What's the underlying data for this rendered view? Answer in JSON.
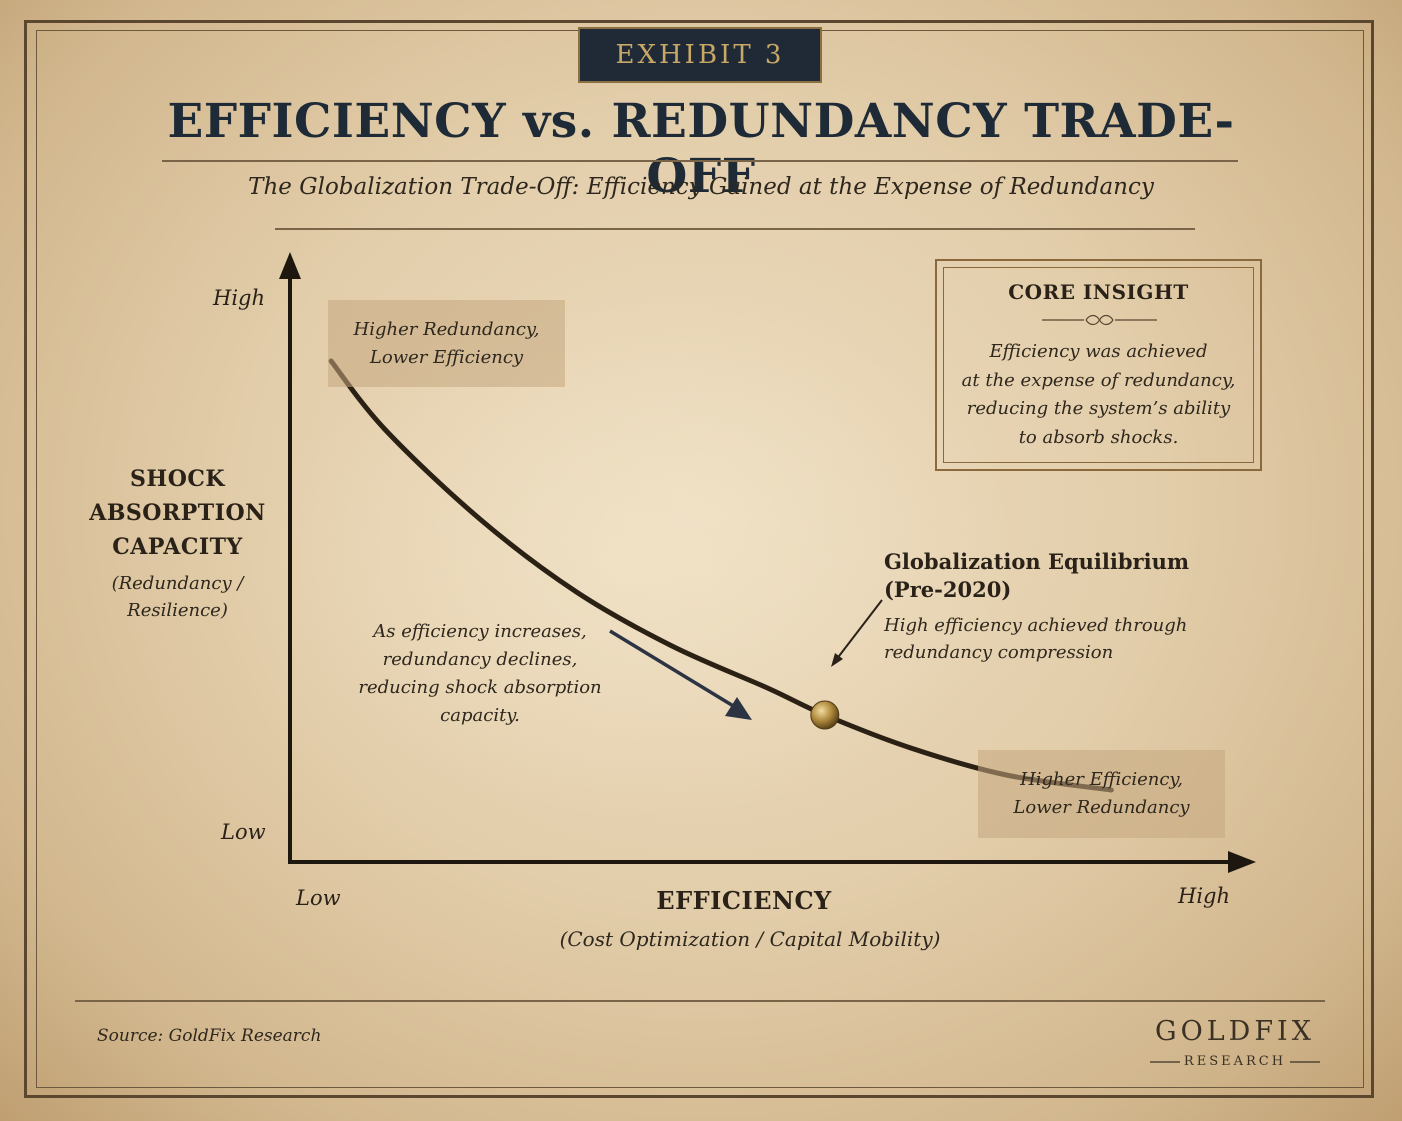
{
  "header": {
    "exhibit": "EXHIBIT 3",
    "title": "EFFICIENCY vs. REDUNDANCY TRADE-OFF",
    "subtitle": "The Globalization Trade-Off: Efficiency Gained at the Expense of Redundancy"
  },
  "chart_data": {
    "type": "line",
    "title": "EFFICIENCY vs. REDUNDANCY TRADE-OFF",
    "subtitle": "The Globalization Trade-Off: Efficiency Gained at the Expense of Redundancy",
    "xlabel": "EFFICIENCY",
    "xlabel_sub": "(Cost Optimization / Capital Mobility)",
    "ylabel_lines": [
      "SHOCK",
      "ABSORPTION",
      "CAPACITY"
    ],
    "ylabel_sub_lines": [
      "(Redundancy /",
      "Resilience)"
    ],
    "x_ticks": {
      "low": "Low",
      "high": "High"
    },
    "y_ticks": {
      "low": "Low",
      "high": "High"
    },
    "xlim": [
      0,
      1
    ],
    "ylim": [
      0,
      1
    ],
    "grid": false,
    "series": [
      {
        "x": [
          0.043,
          0.1,
          0.2,
          0.3,
          0.4,
          0.5,
          0.56,
          0.65,
          0.75,
          0.86
        ],
        "y": [
          0.835,
          0.72,
          0.57,
          0.45,
          0.36,
          0.29,
          0.245,
          0.19,
          0.145,
          0.12
        ],
        "color": "#2a2014"
      }
    ],
    "highlight_point": {
      "x": 0.56,
      "y": 0.245,
      "color": "#b08a3e"
    },
    "annotations": {
      "top_left_box": [
        "Higher Redundancy,",
        "Lower Efficiency"
      ],
      "bottom_right_box": [
        "Higher Efficiency,",
        "Lower Redundancy"
      ],
      "equilibrium_title_lines": [
        "Globalization Equilibrium",
        "(Pre-2020)"
      ],
      "equilibrium_desc_lines": [
        "High efficiency achieved through",
        "redundancy compression"
      ],
      "trend_note_lines": [
        "As efficiency increases,",
        "redundancy declines,",
        "reducing shock absorption",
        "capacity."
      ]
    }
  },
  "insight": {
    "title": "CORE INSIGHT",
    "lines": [
      "Efficiency was achieved",
      "at the expense of redundancy,",
      "reducing the system’s ability",
      "to absorb shocks."
    ]
  },
  "footer": {
    "source": "Source: GoldFix Research",
    "logo_name": "GOLDFIX",
    "logo_sub": "RESEARCH"
  },
  "colors": {
    "paper": "#e3ceab",
    "ink": "#2a2218",
    "navy": "#1f2a36",
    "gold": "#c8a866",
    "bronze": "#b08a3e"
  }
}
